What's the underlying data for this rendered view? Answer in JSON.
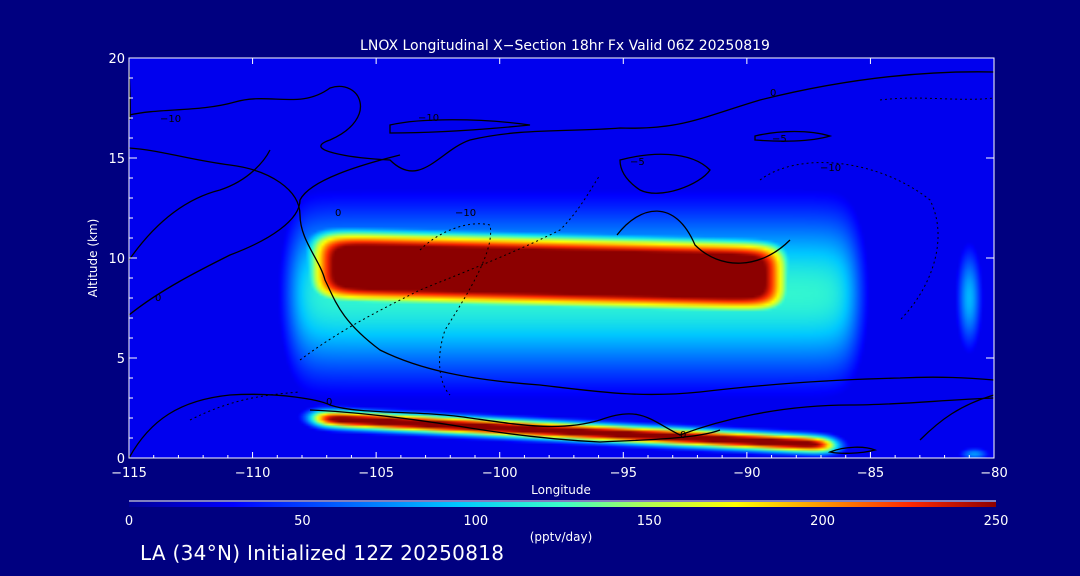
{
  "chart_data": {
    "type": "heatmap",
    "title": "LNOX Longitudinal X−Section 18hr  Fx Valid 06Z 20250819",
    "xlabel": "Longitude",
    "ylabel": "Altitude (km)",
    "xlim": [
      -115,
      -80
    ],
    "ylim": [
      0,
      20
    ],
    "x_ticks": [
      -115,
      -110,
      -105,
      -100,
      -95,
      -90,
      -85,
      -80
    ],
    "x_tick_labels": [
      "−115",
      "−110",
      "−105",
      "−100",
      "−95",
      "−90",
      "−85",
      "−80"
    ],
    "y_ticks": [
      0,
      5,
      10,
      15,
      20
    ],
    "y_tick_labels": [
      "0",
      "5",
      "10",
      "15",
      "20"
    ],
    "colorbar": {
      "label": "(pptv/day)",
      "min": 0,
      "max": 250,
      "ticks": [
        0,
        50,
        100,
        150,
        200,
        250
      ],
      "tick_labels": [
        "0",
        "50",
        "100",
        "150",
        "200",
        "250"
      ]
    },
    "contour_labels": [
      "−10",
      "−10",
      "−10",
      "−10",
      "0",
      "0",
      "0",
      "0",
      "0",
      "−5",
      "−5"
    ],
    "field_features": [
      {
        "name": "upper-lnox-core",
        "lon_min": -107.5,
        "lon_max": -88.5,
        "alt_center": 9.6,
        "alt_halfwidth": 1.8,
        "peak": 250
      },
      {
        "name": "upper-lnox-halo",
        "lon_min": -108.5,
        "lon_max": -85.5,
        "alt_center": 8.2,
        "alt_halfwidth": 4.2,
        "peak": 120
      },
      {
        "name": "low-level-band",
        "lon_min": -107.5,
        "lon_max": -86.5,
        "alt_center": 1.0,
        "alt_halfwidth": 0.5,
        "peak": 250
      },
      {
        "name": "east-cell",
        "lon_min": -81.5,
        "lon_max": -80.5,
        "alt_center": 8.0,
        "alt_halfwidth": 2.5,
        "peak": 90
      }
    ]
  },
  "footer": "LA (34°N) Initialized 12Z 20250818",
  "colors": {
    "background": "#000080",
    "foreground": "#ffffff",
    "contour": "#000000",
    "scale": [
      "#00008c",
      "#0000ff",
      "#0064ff",
      "#00c8ff",
      "#3cffc8",
      "#b4ff50",
      "#ffff00",
      "#ff9600",
      "#ff2800",
      "#8c0000"
    ]
  }
}
